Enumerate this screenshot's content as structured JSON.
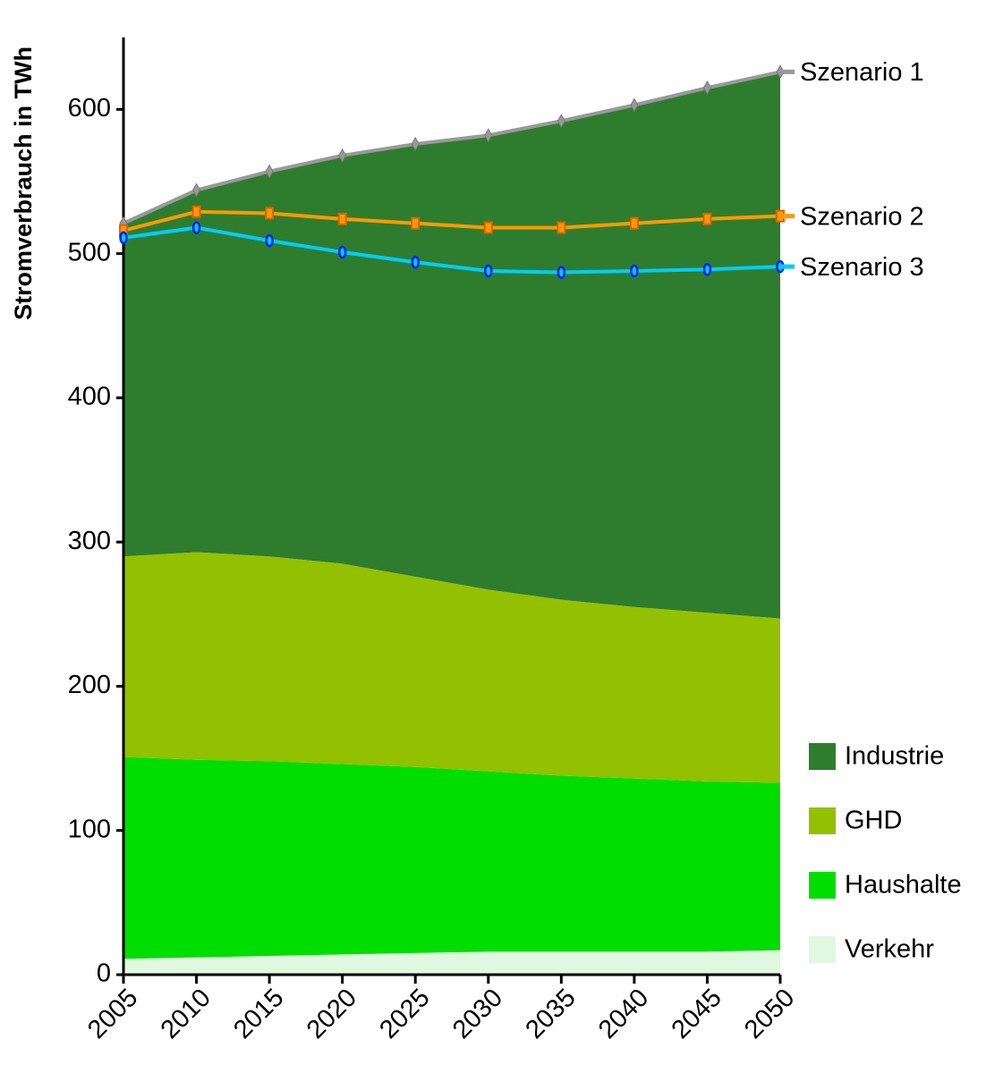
{
  "chart_data": {
    "type": "area",
    "stacked": true,
    "y_label": "Stromverbrauch in TWh",
    "x": [
      2005,
      2010,
      2015,
      2020,
      2025,
      2030,
      2035,
      2040,
      2045,
      2050
    ],
    "xlim": [
      2005,
      2050
    ],
    "xticks": [
      2005,
      2010,
      2015,
      2020,
      2025,
      2030,
      2035,
      2040,
      2045,
      2050
    ],
    "ylim": [
      0,
      650
    ],
    "yticks": [
      0,
      100,
      200,
      300,
      400,
      500,
      600
    ],
    "legend": "lower right",
    "series": [
      {
        "name": "Verkehr",
        "type": "area",
        "color": "#e0f8e0",
        "values": [
          11,
          12,
          13,
          14,
          15,
          16,
          16,
          16,
          16,
          17
        ]
      },
      {
        "name": "Haushalte",
        "type": "area",
        "color": "#00dd00",
        "values": [
          140,
          137,
          135,
          132,
          129,
          125,
          122,
          120,
          118,
          116
        ]
      },
      {
        "name": "GHD",
        "type": "area",
        "color": "#93c000",
        "values": [
          139,
          144,
          142,
          139,
          132,
          126,
          122,
          119,
          117,
          114
        ]
      },
      {
        "name": "Industrie",
        "type": "area",
        "color": "#2e7d2e",
        "values": [
          231,
          251,
          267,
          283,
          300,
          315,
          332,
          348,
          364,
          379
        ]
      },
      {
        "name": "Szenario 1",
        "type": "line",
        "color": "#999999",
        "marker": "diamond",
        "values": [
          521,
          544,
          557,
          568,
          576,
          582,
          592,
          603,
          615,
          626
        ]
      },
      {
        "name": "Szenario 2",
        "type": "line",
        "color": "#ff9900",
        "marker": "square",
        "values": [
          516,
          529,
          528,
          524,
          521,
          518,
          518,
          521,
          524,
          526
        ]
      },
      {
        "name": "Szenario 3",
        "type": "line",
        "color": "#00ccff",
        "marker": "circle",
        "values": [
          511,
          518,
          509,
          501,
          494,
          488,
          487,
          488,
          489,
          491
        ]
      }
    ]
  }
}
